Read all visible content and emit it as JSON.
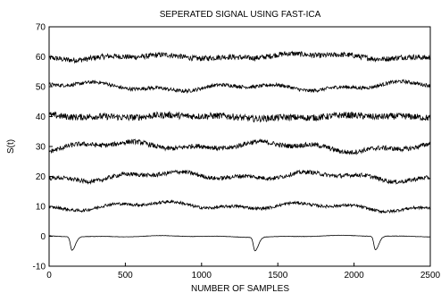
{
  "chart_data": {
    "type": "line",
    "title": "SEPERATED SIGNAL USING FAST-ICA",
    "xlabel": "NUMBER OF SAMPLES",
    "ylabel": "S(t)",
    "xlim": [
      0,
      2500
    ],
    "ylim": [
      -10,
      70
    ],
    "x_ticks": [
      0,
      500,
      1000,
      1500,
      2000,
      2500
    ],
    "y_ticks": [
      -10,
      0,
      10,
      20,
      30,
      40,
      50,
      60,
      70
    ],
    "grid": false,
    "line_color": "#000000",
    "series": [
      {
        "offset": 60,
        "noise": 0.9,
        "wander": 0.9
      },
      {
        "offset": 50,
        "noise": 0.6,
        "wander": 1.4
      },
      {
        "offset": 40,
        "noise": 1.1,
        "wander": 0.6
      },
      {
        "offset": 30,
        "noise": 0.8,
        "wander": 1.6
      },
      {
        "offset": 20,
        "noise": 0.7,
        "wander": 1.5
      },
      {
        "offset": 10,
        "noise": 0.5,
        "wander": 1.4
      },
      {
        "offset": 0,
        "noise": 0.05,
        "wander": 0.3,
        "spikes": [
          150,
          1350,
          2140
        ],
        "spike_depth": 4.5
      }
    ]
  }
}
